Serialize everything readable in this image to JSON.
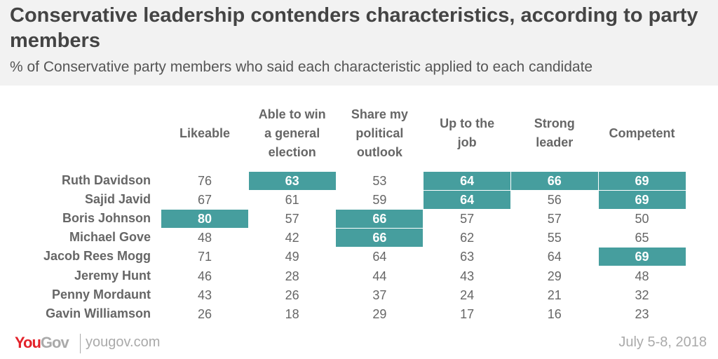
{
  "header": {
    "title": "Conservative leadership contenders characteristics, according to party members",
    "subtitle": "% of Conservative party members who said each characteristic applied to each candidate"
  },
  "chart_data": {
    "type": "table",
    "title": "Conservative leadership contenders characteristics, according to party members",
    "subtitle": "% of Conservative party members who said each characteristic applied to each candidate",
    "columns": [
      "Likeable",
      "Able to win a general election",
      "Share my political outlook",
      "Up to the job",
      "Strong leader",
      "Competent"
    ],
    "rows": [
      "Ruth Davidson",
      "Sajid Javid",
      "Boris Johnson",
      "Michael Gove",
      "Jacob Rees Mogg",
      "Jeremy Hunt",
      "Penny Mordaunt",
      "Gavin Williamson"
    ],
    "values": [
      [
        76,
        63,
        53,
        64,
        66,
        69
      ],
      [
        67,
        61,
        59,
        64,
        56,
        69
      ],
      [
        80,
        57,
        66,
        57,
        57,
        50
      ],
      [
        48,
        42,
        66,
        62,
        55,
        65
      ],
      [
        71,
        49,
        64,
        63,
        64,
        69
      ],
      [
        46,
        28,
        44,
        43,
        29,
        48
      ],
      [
        43,
        26,
        37,
        24,
        21,
        32
      ],
      [
        26,
        18,
        29,
        17,
        16,
        23
      ]
    ],
    "highlighted": [
      [
        0,
        1
      ],
      [
        0,
        3
      ],
      [
        0,
        4
      ],
      [
        0,
        5
      ],
      [
        1,
        3
      ],
      [
        1,
        5
      ],
      [
        2,
        0
      ],
      [
        2,
        2
      ],
      [
        3,
        2
      ],
      [
        4,
        5
      ]
    ],
    "highlight_color": "#469e9e"
  },
  "footer": {
    "logo": "YouGov",
    "url": "yougov.com",
    "date": "July 5-8, 2018"
  }
}
